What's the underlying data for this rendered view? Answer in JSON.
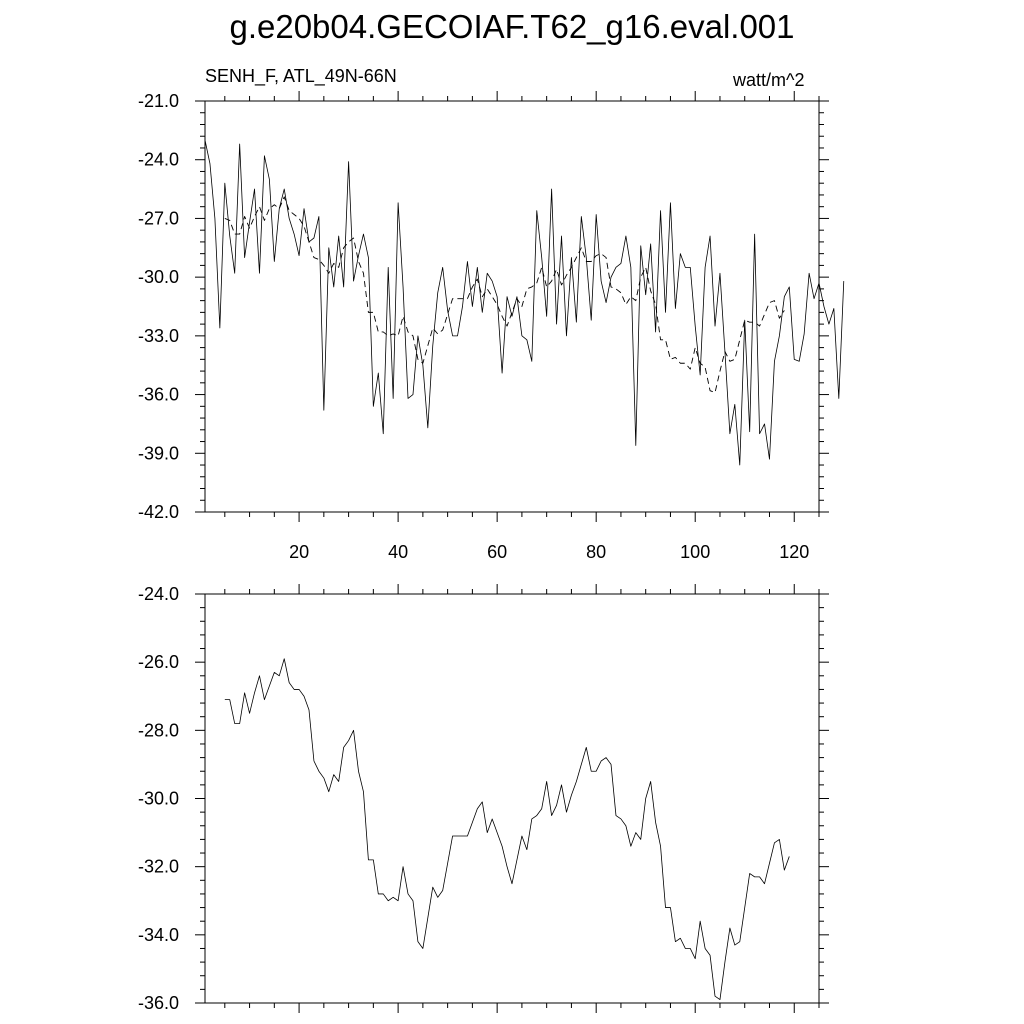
{
  "title": "g.e20b04.GECOIAF.T62_g16.eval.001",
  "top_left_label": "SENH_F, ATL_49N-66N",
  "top_right_label": "watt/m^2",
  "chart_data": [
    {
      "type": "line",
      "title": "",
      "xlabel": "",
      "ylabel": "",
      "xlim": [
        1,
        125
      ],
      "ylim": [
        -42,
        -21
      ],
      "x_ticks": [
        20,
        40,
        60,
        80,
        100,
        120
      ],
      "x_tick_labels": [
        "20",
        "40",
        "60",
        "80",
        "100",
        "120"
      ],
      "y_ticks": [
        -21,
        -24,
        -27,
        -30,
        -33,
        -36,
        -39,
        -42
      ],
      "y_tick_labels": [
        "-21.0",
        "-24.0",
        "-27.0",
        "-30.0",
        "-33.0",
        "-36.0",
        "-39.0",
        "-42.0"
      ],
      "series": [
        {
          "style": "solid",
          "x_start": 1,
          "values": [
            -23.0,
            -24.2,
            -27.0,
            -32.6,
            -25.2,
            -27.9,
            -29.8,
            -23.2,
            -29.0,
            -27.2,
            -25.5,
            -29.8,
            -23.8,
            -25.0,
            -29.2,
            -26.5,
            -25.5,
            -27.0,
            -27.8,
            -28.9,
            -26.5,
            -28.2,
            -28.0,
            -26.9,
            -36.8,
            -28.5,
            -30.5,
            -27.9,
            -30.5,
            -24.1,
            -30.2,
            -28.9,
            -27.8,
            -29.0,
            -36.6,
            -34.9,
            -38.0,
            -29.5,
            -36.2,
            -26.2,
            -30.5,
            -36.2,
            -36.0,
            -33.0,
            -34.5,
            -37.7,
            -33.5,
            -30.8,
            -29.5,
            -31.7,
            -33.0,
            -33.0,
            -31.5,
            -29.2,
            -31.5,
            -29.5,
            -31.8,
            -29.8,
            -30.2,
            -31.0,
            -34.9,
            -31.0,
            -32.0,
            -31.0,
            -33.0,
            -33.2,
            -34.3,
            -26.6,
            -29.0,
            -32.0,
            -25.5,
            -32.4,
            -27.9,
            -33.0,
            -29.0,
            -32.3,
            -26.9,
            -29.0,
            -32.2,
            -26.8,
            -30.2,
            -31.3,
            -30.0,
            -29.5,
            -29.3,
            -27.9,
            -29.5,
            -38.6,
            -28.4,
            -30.9,
            -28.3,
            -32.8,
            -26.6,
            -31.8,
            -26.2,
            -31.6,
            -28.8,
            -29.5,
            -29.5,
            -32.5,
            -35.0,
            -29.5,
            -27.9,
            -32.5,
            -29.8,
            -33.8,
            -38.0,
            -36.5,
            -39.6,
            -32.2,
            -37.9,
            -27.8,
            -38.0,
            -37.5,
            -39.3,
            -34.3,
            -33.0,
            -31.0,
            -30.5,
            -34.2,
            -34.3,
            -32.9,
            -29.8,
            -31.1,
            -30.3,
            -31.5,
            -32.4,
            -31.6,
            -36.2,
            -30.2
          ]
        },
        {
          "style": "dashed",
          "x_start": 5,
          "values": [
            -27.0,
            -27.1,
            -27.8,
            -27.8,
            -26.9,
            -27.5,
            -26.9,
            -26.4,
            -27.1,
            -26.5,
            -26.3,
            -26.5,
            -25.9,
            -26.6,
            -26.8,
            -27.0,
            -27.4,
            -28.2,
            -29.0,
            -29.1,
            -29.4,
            -29.8,
            -29.3,
            -29.5,
            -28.5,
            -28.2,
            -28.0,
            -29.2,
            -29.8,
            -31.8,
            -31.8,
            -32.8,
            -32.8,
            -33.0,
            -32.9,
            -33.0,
            -32.0,
            -32.8,
            -33.0,
            -34.2,
            -34.4,
            -33.5,
            -32.6,
            -32.9,
            -32.7,
            -31.9,
            -31.1,
            -31.1,
            -31.1,
            -31.1,
            -30.5,
            -30.1,
            -31.0,
            -30.6,
            -31.0,
            -31.4,
            -32.0,
            -32.5,
            -31.8,
            -31.1,
            -31.5,
            -30.6,
            -30.5,
            -30.3,
            -29.5,
            -30.5,
            -30.2,
            -29.6,
            -30.4,
            -29.9,
            -29.5,
            -29.0,
            -28.5,
            -29.2,
            -29.2,
            -28.9,
            -28.8,
            -29.0,
            -30.5,
            -30.6,
            -30.8,
            -31.4,
            -31.0,
            -31.2,
            -30.0,
            -29.5,
            -30.7,
            -31.4,
            -33.2,
            -33.2,
            -34.2,
            -34.1,
            -34.4,
            -34.4,
            -34.7,
            -33.6,
            -34.4,
            -34.6,
            -35.8,
            -35.9,
            -34.8,
            -33.8,
            -34.3,
            -34.2,
            -33.2,
            -32.2,
            -32.3,
            -32.3,
            -32.5,
            -31.9,
            -31.3,
            -31.2,
            -32.1,
            -31.7
          ]
        }
      ]
    },
    {
      "type": "line",
      "title": "",
      "xlabel": "",
      "ylabel": "",
      "xlim": [
        1,
        125
      ],
      "ylim": [
        -36,
        -24
      ],
      "x_ticks": [
        20,
        40,
        60,
        80,
        100,
        120
      ],
      "y_ticks": [
        -24,
        -26,
        -28,
        -30,
        -32,
        -34,
        -36
      ],
      "y_tick_labels": [
        "-24.0",
        "-26.0",
        "-28.0",
        "-30.0",
        "-32.0",
        "-34.0",
        "-36.0"
      ],
      "series": [
        {
          "style": "solid",
          "x_start": 5,
          "values": [
            -27.1,
            -27.1,
            -27.8,
            -27.8,
            -26.9,
            -27.5,
            -26.9,
            -26.4,
            -27.1,
            -26.7,
            -26.3,
            -26.4,
            -25.9,
            -26.6,
            -26.8,
            -26.8,
            -27.0,
            -27.4,
            -28.9,
            -29.2,
            -29.4,
            -29.8,
            -29.3,
            -29.5,
            -28.5,
            -28.3,
            -28.0,
            -29.2,
            -29.8,
            -31.8,
            -31.8,
            -32.8,
            -32.8,
            -33.0,
            -32.9,
            -33.0,
            -32.0,
            -32.8,
            -33.0,
            -34.2,
            -34.4,
            -33.5,
            -32.6,
            -32.9,
            -32.7,
            -31.9,
            -31.1,
            -31.1,
            -31.1,
            -31.1,
            -30.7,
            -30.3,
            -30.1,
            -31.0,
            -30.6,
            -31.0,
            -31.4,
            -32.0,
            -32.5,
            -31.8,
            -31.1,
            -31.5,
            -30.6,
            -30.5,
            -30.3,
            -29.5,
            -30.5,
            -30.2,
            -29.6,
            -30.4,
            -29.9,
            -29.5,
            -29.0,
            -28.5,
            -29.2,
            -29.2,
            -28.9,
            -28.8,
            -29.0,
            -30.5,
            -30.6,
            -30.8,
            -31.4,
            -31.0,
            -31.2,
            -30.0,
            -29.5,
            -30.7,
            -31.4,
            -33.2,
            -33.2,
            -34.2,
            -34.1,
            -34.4,
            -34.4,
            -34.7,
            -33.6,
            -34.4,
            -34.6,
            -35.8,
            -35.9,
            -34.8,
            -33.8,
            -34.3,
            -34.2,
            -33.2,
            -32.2,
            -32.3,
            -32.3,
            -32.5,
            -31.9,
            -31.3,
            -31.2,
            -32.1,
            -31.7
          ]
        }
      ]
    }
  ]
}
